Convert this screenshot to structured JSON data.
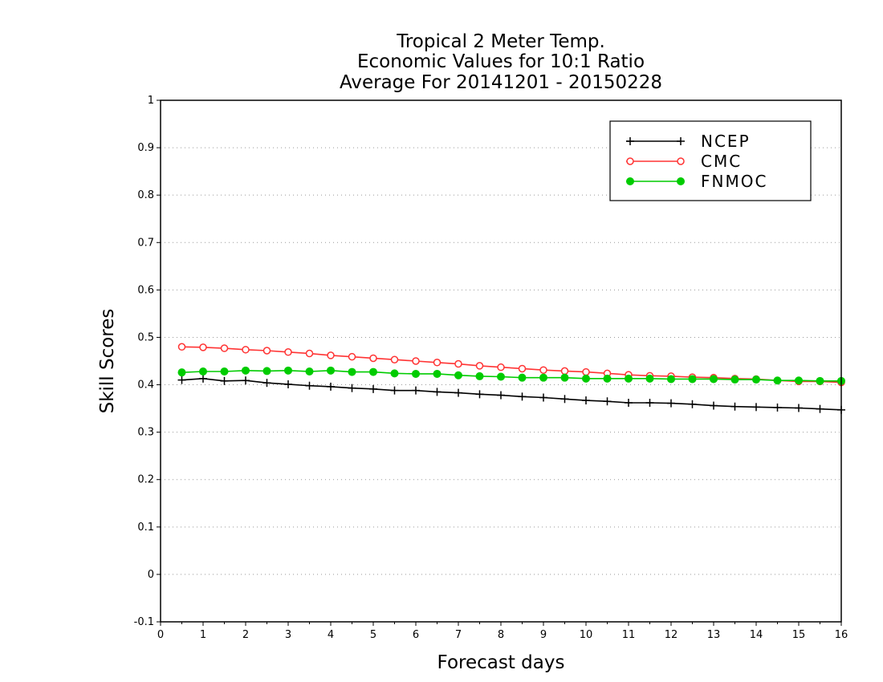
{
  "chart_data": {
    "type": "line",
    "title_lines": [
      "Tropical 2 Meter Temp.",
      "Economic Values for 10:1 Ratio",
      "Average For 20141201 - 20150228"
    ],
    "xlabel": "Forecast days",
    "ylabel": "Skill Scores",
    "xlim": [
      0,
      16
    ],
    "ylim": [
      -0.1,
      1
    ],
    "x_ticks": [
      0,
      1,
      2,
      3,
      4,
      5,
      6,
      7,
      8,
      9,
      10,
      11,
      12,
      13,
      14,
      15,
      16
    ],
    "y_ticks": [
      {
        "value": -0.1,
        "label": "-0.1"
      },
      {
        "value": 0,
        "label": "0"
      },
      {
        "value": 0.1,
        "label": "0.1"
      },
      {
        "value": 0.2,
        "label": "0.2"
      },
      {
        "value": 0.3,
        "label": "0.3"
      },
      {
        "value": 0.4,
        "label": "0.4"
      },
      {
        "value": 0.5,
        "label": "0.5"
      },
      {
        "value": 0.6,
        "label": "0.6"
      },
      {
        "value": 0.7,
        "label": "0.7"
      },
      {
        "value": 0.8,
        "label": "0.8"
      },
      {
        "value": 0.9,
        "label": "0.9"
      },
      {
        "value": 1,
        "label": "1"
      }
    ],
    "grid": "horizontal dotted",
    "legend_position": "top-right",
    "x": [
      0.5,
      1,
      1.5,
      2,
      2.5,
      3,
      3.5,
      4,
      4.5,
      5,
      5.5,
      6,
      6.5,
      7,
      7.5,
      8,
      8.5,
      9,
      9.5,
      10,
      10.5,
      11,
      11.5,
      12,
      12.5,
      13,
      13.5,
      14,
      14.5,
      15,
      15.5,
      16
    ],
    "series": [
      {
        "name": "NCEP",
        "color": "#000000",
        "marker": "plus",
        "values": [
          0.41,
          0.413,
          0.408,
          0.409,
          0.404,
          0.401,
          0.398,
          0.396,
          0.393,
          0.391,
          0.388,
          0.388,
          0.385,
          0.383,
          0.38,
          0.378,
          0.375,
          0.373,
          0.37,
          0.367,
          0.365,
          0.362,
          0.362,
          0.361,
          0.359,
          0.356,
          0.354,
          0.353,
          0.352,
          0.351,
          0.349,
          0.347
        ]
      },
      {
        "name": "CMC",
        "color": "#ff3333",
        "marker": "open-circle",
        "values": [
          0.48,
          0.479,
          0.477,
          0.474,
          0.472,
          0.469,
          0.466,
          0.462,
          0.459,
          0.456,
          0.453,
          0.45,
          0.447,
          0.444,
          0.44,
          0.437,
          0.434,
          0.431,
          0.429,
          0.427,
          0.424,
          0.421,
          0.419,
          0.418,
          0.416,
          0.415,
          0.413,
          0.412,
          0.409,
          0.407,
          0.407,
          0.405
        ]
      },
      {
        "name": "FNMOC",
        "color": "#00cc00",
        "marker": "filled-circle",
        "values": [
          0.426,
          0.428,
          0.428,
          0.43,
          0.429,
          0.43,
          0.428,
          0.43,
          0.427,
          0.427,
          0.424,
          0.423,
          0.423,
          0.42,
          0.418,
          0.417,
          0.415,
          0.415,
          0.415,
          0.413,
          0.413,
          0.413,
          0.413,
          0.412,
          0.412,
          0.412,
          0.411,
          0.411,
          0.409,
          0.409,
          0.408,
          0.408
        ]
      }
    ]
  }
}
